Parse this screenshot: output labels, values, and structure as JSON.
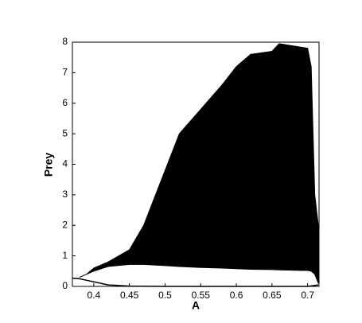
{
  "chart_data": {
    "type": "band",
    "xlabel": "A",
    "ylabel": "Prey",
    "color": "#000000",
    "x": [
      0.38,
      0.39,
      0.4,
      0.42,
      0.45,
      0.47,
      0.5,
      0.52,
      0.55,
      0.58,
      0.6,
      0.62,
      0.65,
      0.66,
      0.7,
      0.705,
      0.71,
      0.715
    ],
    "high": [
      0.3,
      0.4,
      0.6,
      0.8,
      1.2,
      2.0,
      3.8,
      5.0,
      5.8,
      6.6,
      7.2,
      7.6,
      7.7,
      7.95,
      7.8,
      7.2,
      3.0,
      2.0
    ],
    "low": [
      0.3,
      0.4,
      0.5,
      0.65,
      0.72,
      0.72,
      0.68,
      0.65,
      0.62,
      0.6,
      0.58,
      0.56,
      0.55,
      0.54,
      0.52,
      0.5,
      0.4,
      0.1
    ],
    "branch_x": [
      0.37,
      0.38,
      0.39,
      0.4,
      0.42,
      0.45,
      0.5,
      0.6,
      0.7,
      0.715
    ],
    "branch": [
      0.27,
      0.25,
      0.2,
      0.15,
      0.05,
      0.01,
      0.0,
      0.0,
      0.0,
      0.05
    ],
    "xlim": [
      0.37,
      0.716
    ],
    "ylim": [
      0,
      8
    ],
    "xticks": [
      0.4,
      0.45,
      0.5,
      0.55,
      0.6,
      0.65,
      0.7
    ],
    "yticks": [
      0,
      1,
      2,
      3,
      4,
      5,
      6,
      7,
      8
    ]
  }
}
